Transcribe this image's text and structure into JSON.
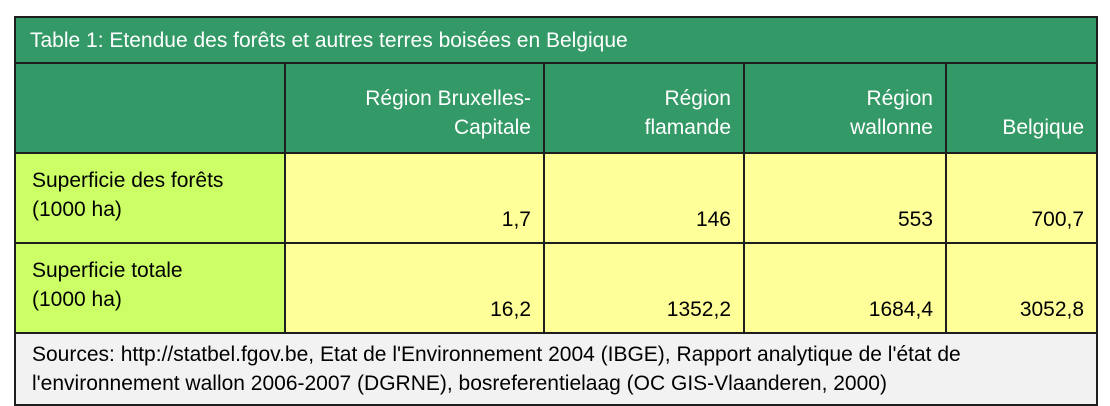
{
  "table": {
    "title": "Table 1: Etendue des forêts et autres terres boisées en Belgique",
    "headers": [
      {
        "line1": "Région Bruxelles-",
        "line2": "Capitale"
      },
      {
        "line1": "Région",
        "line2": "flamande"
      },
      {
        "line1": "Région",
        "line2": "wallonne"
      },
      {
        "line1": "",
        "line2": "Belgique"
      }
    ],
    "rows": [
      {
        "label_line1": "Superficie des forêts",
        "label_line2": "(1000 ha)",
        "values": [
          "1,7",
          "146",
          "553",
          "700,7"
        ]
      },
      {
        "label_line1": "Superficie totale",
        "label_line2": "(1000 ha)",
        "values": [
          "16,2",
          "1352,2",
          "1684,4",
          "3052,8"
        ]
      }
    ],
    "sources": "Sources: http://statbel.fgov.be, Etat de l'Environnement 2004 (IBGE), Rapport analytique de l'état de l'environnement wallon 2006-2007 (DGRNE), bosreferentielaag (OC GIS-Vlaanderen, 2000)",
    "colors": {
      "header_bg": "#339966",
      "label_bg": "#ccff66",
      "value_bg": "#ffff99",
      "source_bg": "#f2f2f2"
    }
  }
}
